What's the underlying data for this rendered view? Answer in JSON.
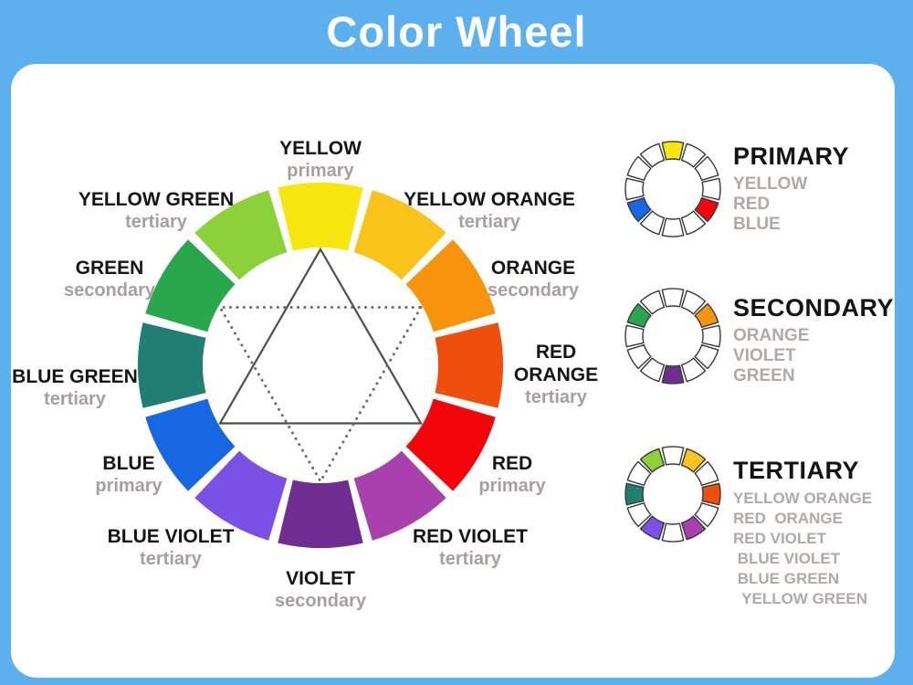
{
  "title": "Color Wheel",
  "palette": {
    "yellow": "#F8E60F",
    "yellow-orange": "#F8C41A",
    "orange": "#F8930D",
    "red-orange": "#F04E0D",
    "red": "#F30509",
    "red-violet": "#A840AE",
    "violet": "#702D91",
    "blue-violet": "#7B50E5",
    "blue": "#1766E2",
    "blue-green": "#1F7F70",
    "green": "#28A74C",
    "yellow-green": "#8AD13A"
  },
  "colors": {
    "frame_blue": "#5CB0EE",
    "panel_white": "#FFFFFF",
    "name_text": "#151515",
    "category_text": "#A89E9E",
    "legend_item_text": "#B2A8A8",
    "solid_triangle": "#4D4D4D",
    "dotted_triangle": "#6B6B6B",
    "mini_wheel_stroke": "#383838"
  },
  "wheel": {
    "segments": [
      {
        "id": "yellow",
        "name": "YELLOW",
        "name_lines": [
          "YELLOW"
        ],
        "category": "primary",
        "angle": -90
      },
      {
        "id": "yellow-orange",
        "name": "YELLOW ORANGE",
        "name_lines": [
          "YELLOW ORANGE"
        ],
        "category": "tertiary",
        "angle": -60
      },
      {
        "id": "orange",
        "name": "ORANGE",
        "name_lines": [
          "ORANGE"
        ],
        "category": "secondary",
        "angle": -30
      },
      {
        "id": "red-orange",
        "name": "RED ORANGE",
        "name_lines": [
          "RED",
          "ORANGE"
        ],
        "category": "tertiary",
        "angle": 0
      },
      {
        "id": "red",
        "name": "RED",
        "name_lines": [
          "RED"
        ],
        "category": "primary",
        "angle": 30
      },
      {
        "id": "red-violet",
        "name": "RED VIOLET",
        "name_lines": [
          "RED VIOLET"
        ],
        "category": "tertiary",
        "angle": 60
      },
      {
        "id": "violet",
        "name": "VIOLET",
        "name_lines": [
          "VIOLET"
        ],
        "category": "secondary",
        "angle": 90
      },
      {
        "id": "blue-violet",
        "name": "BLUE VIOLET",
        "name_lines": [
          "BLUE VIOLET"
        ],
        "category": "tertiary",
        "angle": 120
      },
      {
        "id": "blue",
        "name": "BLUE",
        "name_lines": [
          "BLUE"
        ],
        "category": "primary",
        "angle": 150
      },
      {
        "id": "blue-green",
        "name": "BLUE GREEN",
        "name_lines": [
          "BLUE GREEN"
        ],
        "category": "tertiary",
        "angle": 180
      },
      {
        "id": "green",
        "name": "GREEN",
        "name_lines": [
          "GREEN"
        ],
        "category": "secondary",
        "angle": 210
      },
      {
        "id": "yellow-green",
        "name": "YELLOW GREEN",
        "name_lines": [
          "YELLOW GREEN"
        ],
        "category": "tertiary",
        "angle": 240
      }
    ],
    "solid_triangle_connects": [
      "yellow",
      "red",
      "blue"
    ],
    "dotted_triangle_connects": [
      "orange",
      "violet",
      "green"
    ]
  },
  "legend": [
    {
      "id": "primary",
      "heading": "PRIMARY",
      "items": [
        "YELLOW",
        "RED",
        "BLUE"
      ],
      "filled": [
        "yellow",
        "red",
        "blue"
      ]
    },
    {
      "id": "secondary",
      "heading": "SECONDARY",
      "items": [
        "ORANGE",
        "VIOLET",
        "GREEN"
      ],
      "filled": [
        "orange",
        "violet",
        "green"
      ]
    },
    {
      "id": "tertiary",
      "heading": "TERTIARY",
      "items": [
        "YELLOW ORANGE",
        "RED  ORANGE",
        "RED VIOLET",
        " BLUE VIOLET",
        " BLUE GREEN",
        "  YELLOW GREEN"
      ],
      "filled": [
        "yellow-orange",
        "red-orange",
        "red-violet",
        "blue-violet",
        "blue-green",
        "yellow-green"
      ]
    }
  ]
}
